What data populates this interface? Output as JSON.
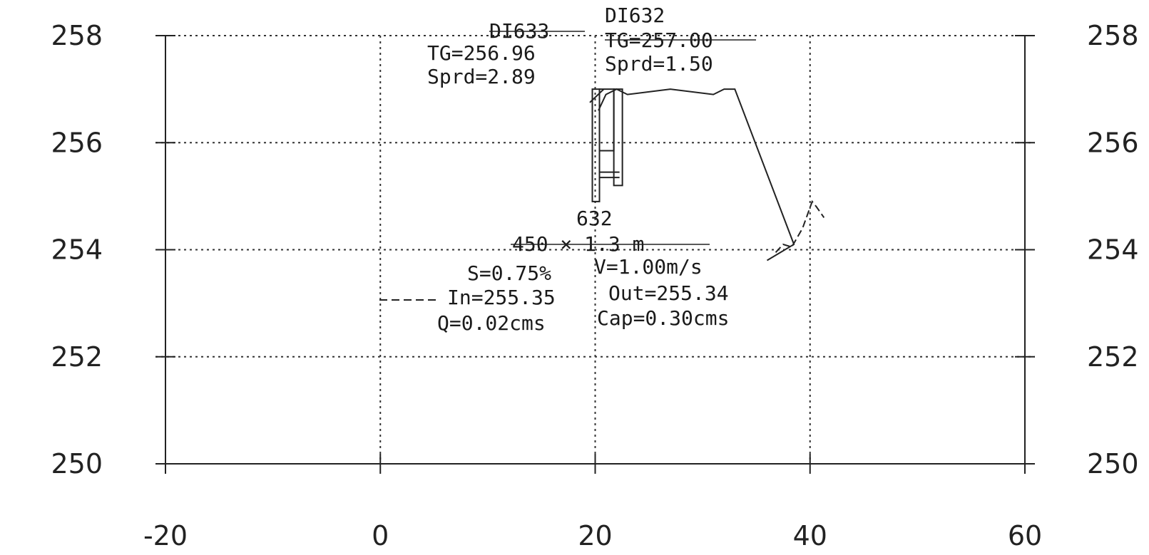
{
  "chart_data": {
    "type": "line",
    "title": "",
    "xlabel": "",
    "ylabel": "",
    "xlim": [
      -20,
      60
    ],
    "ylim": [
      250,
      258
    ],
    "x_ticks": [
      "-20",
      "0",
      "20",
      "40",
      "60"
    ],
    "y_ticks_left": [
      "258",
      "256",
      "254",
      "252",
      "250"
    ],
    "y_ticks_right": [
      "258",
      "256",
      "254",
      "252",
      "250"
    ],
    "grid": true,
    "series": [
      {
        "values": [
          [
            20.3,
            256.6
          ],
          [
            21,
            256.9
          ],
          [
            22,
            257.0
          ],
          [
            23,
            256.9
          ],
          [
            27,
            257.0
          ],
          [
            31,
            256.9
          ],
          [
            32,
            257.0
          ],
          [
            33,
            257.0
          ],
          [
            38.5,
            254.1
          ],
          [
            36,
            253.8
          ]
        ]
      }
    ],
    "structures": [
      {
        "name_label": "DI633",
        "tg_label": "TG=256.96",
        "spread_label": "Sprd=2.89",
        "x": 20.0,
        "top": 257.0,
        "bottom": 254.9
      },
      {
        "name_label": "DI632",
        "tg_label": "TG=257.00",
        "spread_label": "Sprd=1.50",
        "x": 22.0,
        "top": 257.0,
        "bottom": 255.2
      }
    ],
    "pipe": {
      "id_label": "632",
      "size_label": "450 × 1.3 m",
      "slope_label": "S=0.75%",
      "velocity_label": "V=1.00m/s",
      "invert_in_label": "In=255.35",
      "invert_out_label": "Out=255.34",
      "flow_label": "Q=0.02cms",
      "capacity_label": "Cap=0.30cms"
    }
  }
}
